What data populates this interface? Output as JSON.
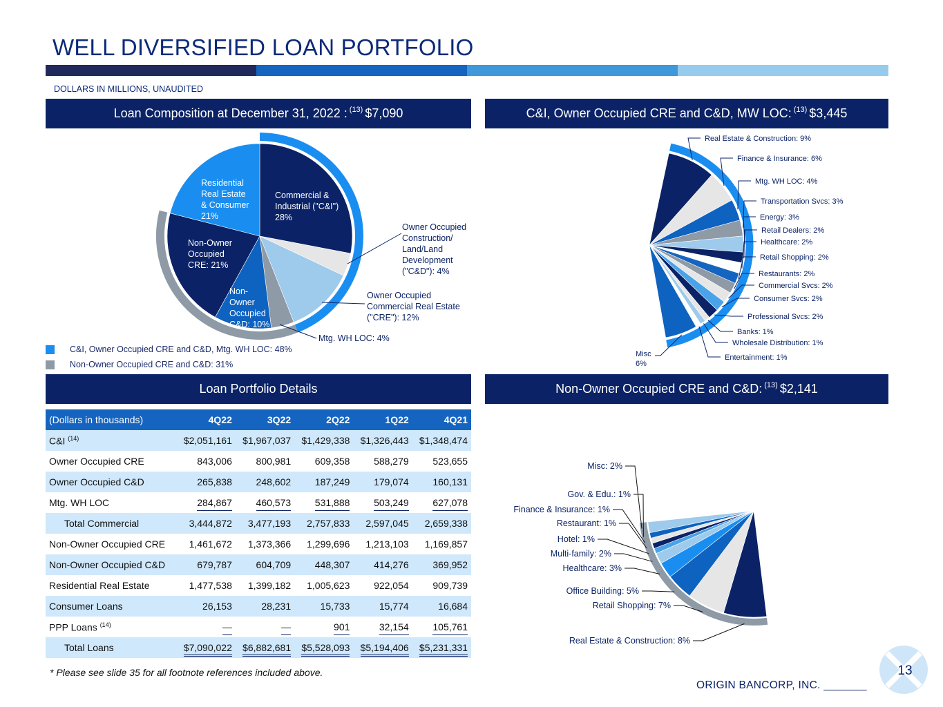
{
  "header": {
    "title": "WELL DIVERSIFIED LOAN PORTFOLIO",
    "subtitle": "DOLLARS IN MILLIONS, UNAUDITED",
    "stripe_colors": [
      "#21295c",
      "#1565c0",
      "#3e98da",
      "#96cbee"
    ]
  },
  "composition": {
    "title": "Loan Composition at December 31, 2022 :",
    "note": "(13)",
    "total": "$7,090",
    "legend": [
      {
        "label": "C&I, Owner Occupied CRE and C&D, Mtg. WH LOC: 48%",
        "color": "#1a8ef0"
      },
      {
        "label": "Non-Owner Occupied CRE and C&D: 31%",
        "color": "#8e9aa6"
      }
    ],
    "chart_data": {
      "type": "pie",
      "values": [
        28,
        4,
        12,
        4,
        10,
        21,
        21
      ],
      "colors": [
        "#0b2366",
        "#e6e6e6",
        "#9ecaec",
        "#8e9aa6",
        "#0e62c0",
        "#0b2366",
        "#1a8ef0"
      ],
      "labels": [
        {
          "lines": [
            "Commercial &",
            "Industrial (\"C&I\")",
            "28%"
          ]
        },
        {
          "lines": [
            "Owner Occupied",
            "Construction/",
            "Land/Land",
            "Development",
            "(\"C&D\"): 4%"
          ]
        },
        {
          "lines": [
            "Owner Occupied",
            "Commercial Real Estate",
            "(\"CRE\"): 12%"
          ]
        },
        {
          "lines": [
            "Mtg. WH LOC: 4%"
          ]
        },
        {
          "lines": [
            "Non-",
            "Owner",
            "Occupied",
            "C&D: 10%"
          ]
        },
        {
          "lines": [
            "Non-Owner",
            "Occupied",
            "CRE: 21%"
          ]
        },
        {
          "lines": [
            "Residential",
            "Real Estate",
            "& Consumer",
            "21%"
          ]
        }
      ]
    }
  },
  "commercial": {
    "title": "C&I, Owner Occupied CRE and C&D, MW LOC:",
    "note": "(13)",
    "total": "$3,445",
    "chart_data": {
      "type": "pie",
      "values": [
        9,
        6,
        4,
        3,
        3,
        2,
        2,
        2,
        2,
        2,
        2,
        2,
        1,
        1,
        1,
        6
      ],
      "colors": [
        "#0b2366",
        "#e6e6e6",
        "#0e62c0",
        "#8e9aa6",
        "#9ecaec",
        "#0b2366",
        "#ffffff",
        "#1565c0",
        "#8e9aa6",
        "#e6e6e6",
        "#4aa3e8",
        "#0b2366",
        "#e6e6e6",
        "#9ecaec",
        "#ffffff",
        "#0e62c0"
      ],
      "labels": [
        {
          "text": "Real Estate & Construction: 9%"
        },
        {
          "text": "Finance & Insurance: 6%"
        },
        {
          "text": "Mtg. WH LOC: 4%"
        },
        {
          "text": "Transportation Svcs: 3%"
        },
        {
          "text": "Energy: 3%"
        },
        {
          "text": "Retail Dealers: 2%"
        },
        {
          "text": "Healthcare: 2%"
        },
        {
          "text": "Retail Shopping: 2%"
        },
        {
          "text": "Restaurants: 2%"
        },
        {
          "text": "Commercial Svcs: 2%"
        },
        {
          "text": "Consumer Svcs: 2%"
        },
        {
          "text": "Professional Svcs: 2%"
        },
        {
          "text": "Banks: 1%"
        },
        {
          "text": "Wholesale Distribution: 1%"
        },
        {
          "text": "Entertainment: 1%"
        },
        {
          "text": "Misc",
          "sub": "6%"
        }
      ]
    }
  },
  "details": {
    "title": "Loan Portfolio Details",
    "columns": [
      "(Dollars in thousands)",
      "4Q22",
      "3Q22",
      "2Q22",
      "1Q22",
      "4Q21"
    ],
    "rows": [
      {
        "label": "C&I",
        "sup": "(14)",
        "values": [
          "$2,051,161",
          "$1,967,037",
          "$1,429,338",
          "$1,326,443",
          "$1,348,474"
        ]
      },
      {
        "label": "Owner Occupied CRE",
        "values": [
          "843,006",
          "800,981",
          "609,358",
          "588,279",
          "523,655"
        ]
      },
      {
        "label": "Owner Occupied C&D",
        "values": [
          "265,838",
          "248,602",
          "187,249",
          "179,074",
          "160,131"
        ]
      },
      {
        "label": "Mtg. WH LOC",
        "values": [
          "284,867",
          "460,573",
          "531,888",
          "503,249",
          "627,078"
        ]
      },
      {
        "label": "Total Commercial",
        "values": [
          "3,444,872",
          "3,477,193",
          "2,757,833",
          "2,597,045",
          "2,659,338"
        ]
      },
      {
        "label": "Non-Owner Occupied CRE",
        "values": [
          "1,461,672",
          "1,373,366",
          "1,299,696",
          "1,213,103",
          "1,169,857"
        ]
      },
      {
        "label": "Non-Owner Occupied C&D",
        "values": [
          "679,787",
          "604,709",
          "448,307",
          "414,276",
          "369,952"
        ]
      },
      {
        "label": "Residential Real Estate",
        "values": [
          "1,477,538",
          "1,399,182",
          "1,005,623",
          "922,054",
          "909,739"
        ]
      },
      {
        "label": "Consumer Loans",
        "values": [
          "26,153",
          "28,231",
          "15,733",
          "15,774",
          "16,684"
        ]
      },
      {
        "label": "PPP Loans",
        "sup": "(14)",
        "values": [
          "—",
          "—",
          "901",
          "32,154",
          "105,761"
        ]
      },
      {
        "label": "Total Loans",
        "values": [
          "$7,090,022",
          "$6,882,681",
          "$5,528,093",
          "$5,194,406",
          "$5,231,331"
        ]
      }
    ]
  },
  "nonowner": {
    "title": "Non-Owner Occupied CRE and C&D:",
    "note": "(13)",
    "total": "$2,141",
    "chart_data": {
      "type": "pie",
      "values": [
        8,
        7,
        5,
        3,
        2,
        1,
        1,
        1,
        1,
        2
      ],
      "colors": [
        "#0b2366",
        "#e6e6e6",
        "#0e62c0",
        "#1a8ef0",
        "#9ecaec",
        "#4aa3e8",
        "#0b2366",
        "#e6e6e6",
        "#0e62c0",
        "#9ecaec"
      ],
      "labels": [
        {
          "text": "Real Estate & Construction: 8%"
        },
        {
          "text": "Retail Shopping: 7%"
        },
        {
          "text": "Office Building: 5%"
        },
        {
          "text": "Healthcare: 3%"
        },
        {
          "text": "Multi-family: 2%"
        },
        {
          "text": "Hotel: 1%"
        },
        {
          "text": "Restaurant: 1%"
        },
        {
          "text": "Finance & Insurance: 1%"
        },
        {
          "text": "Gov. & Edu.: 1%"
        },
        {
          "text": "Misc: 2%"
        }
      ]
    }
  },
  "footer": {
    "footnote": "* Please see slide 35 for all footnote references included above.",
    "company": "ORIGIN BANCORP, INC. _______",
    "page_number": "13"
  }
}
